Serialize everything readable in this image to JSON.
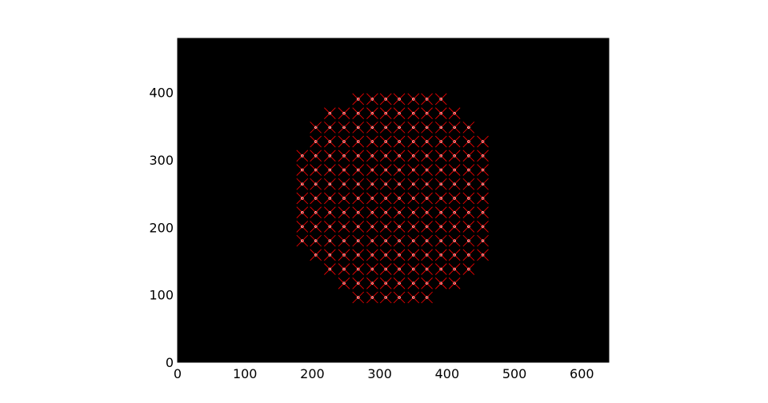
{
  "chart_data": {
    "type": "scatter",
    "title": "",
    "xlabel": "",
    "ylabel": "",
    "xlim": [
      0,
      640
    ],
    "ylim": [
      0,
      480
    ],
    "x_ticks": [
      "0",
      "100",
      "200",
      "300",
      "400",
      "500",
      "600"
    ],
    "y_ticks": [
      "0",
      "100",
      "200",
      "300",
      "400"
    ],
    "background_color": "#000000",
    "spot_color": "#ffffff",
    "marker_color": "#ff0000",
    "marker": "x",
    "grid": false,
    "legend": "none",
    "description": "White spot grid (image) overlaid with red x markers at detected spot centers; spots arranged in a roughly circular hexagonal lattice.",
    "rows": [
      {
        "y": 96,
        "x": [
          268,
          289,
          309,
          329,
          350,
          370
        ]
      },
      {
        "y": 117,
        "x": [
          247,
          268,
          289,
          309,
          329,
          350,
          370,
          391,
          411
        ]
      },
      {
        "y": 138,
        "x": [
          226,
          247,
          268,
          289,
          309,
          329,
          350,
          370,
          391,
          411,
          432
        ]
      },
      {
        "y": 159,
        "x": [
          205,
          226,
          247,
          268,
          289,
          309,
          329,
          350,
          370,
          391,
          411,
          432,
          453
        ]
      },
      {
        "y": 180,
        "x": [
          185,
          205,
          226,
          247,
          268,
          289,
          309,
          329,
          350,
          370,
          391,
          411,
          432,
          453
        ]
      },
      {
        "y": 201,
        "x": [
          185,
          205,
          226,
          247,
          268,
          289,
          309,
          329,
          350,
          370,
          391,
          411,
          432,
          453
        ]
      },
      {
        "y": 222,
        "x": [
          185,
          205,
          226,
          247,
          268,
          289,
          309,
          329,
          350,
          370,
          391,
          411,
          432,
          453
        ]
      },
      {
        "y": 243,
        "x": [
          185,
          205,
          226,
          247,
          268,
          289,
          309,
          329,
          350,
          370,
          391,
          411,
          432,
          453
        ]
      },
      {
        "y": 264,
        "x": [
          185,
          205,
          226,
          247,
          268,
          289,
          309,
          329,
          350,
          370,
          391,
          411,
          432,
          453
        ]
      },
      {
        "y": 285,
        "x": [
          185,
          205,
          226,
          247,
          268,
          289,
          309,
          329,
          350,
          370,
          391,
          411,
          432,
          453
        ]
      },
      {
        "y": 306,
        "x": [
          185,
          205,
          226,
          247,
          268,
          289,
          309,
          329,
          350,
          370,
          391,
          411,
          432,
          453
        ]
      },
      {
        "y": 327,
        "x": [
          205,
          226,
          247,
          268,
          289,
          309,
          329,
          350,
          370,
          391,
          411,
          432,
          453
        ]
      },
      {
        "y": 348,
        "x": [
          205,
          226,
          247,
          268,
          289,
          309,
          329,
          350,
          370,
          391,
          411,
          432
        ]
      },
      {
        "y": 369,
        "x": [
          226,
          247,
          268,
          289,
          309,
          329,
          350,
          370,
          391,
          411
        ]
      },
      {
        "y": 390,
        "x": [
          268,
          289,
          309,
          329,
          350,
          370,
          391
        ]
      }
    ]
  }
}
